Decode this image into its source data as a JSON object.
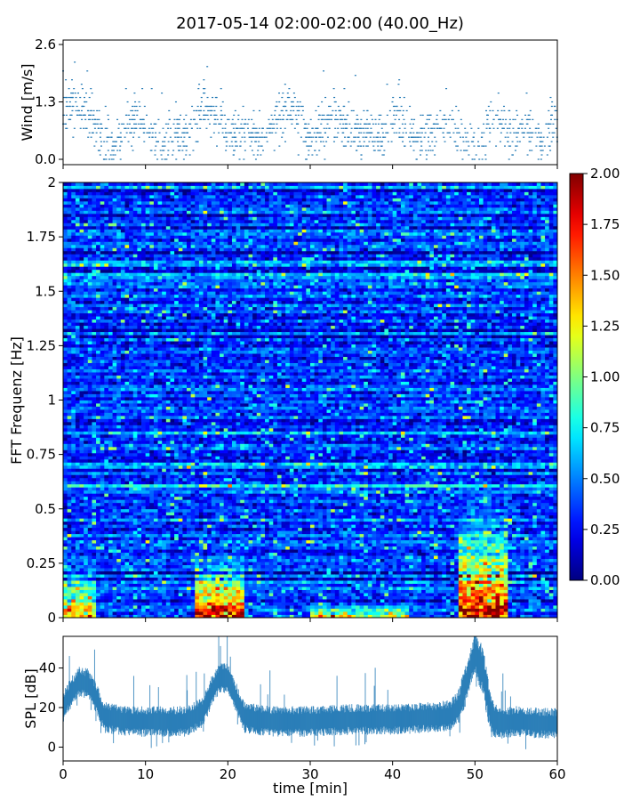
{
  "title": "2017-05-14 02:00-02:00 (40.00_Hz)",
  "colors": {
    "series": "#1f77b4",
    "colormap": [
      "#00007f",
      "#0000ff",
      "#0080ff",
      "#00ffff",
      "#80ff80",
      "#ffff00",
      "#ff8000",
      "#ff0000",
      "#7f0000"
    ]
  },
  "chart_data": [
    {
      "name": "wind",
      "type": "scatter",
      "ylabel": "Wind [m/s]",
      "ylim": [
        0,
        2.6
      ],
      "yticks": [
        0.0,
        1.3,
        2.6
      ],
      "yticklabels": [
        "0.0",
        "1.3",
        "2.6"
      ],
      "xlim": [
        0,
        60
      ],
      "xticks": [
        0,
        10,
        20,
        30,
        40,
        50,
        60
      ],
      "grid": false,
      "x_unit": "min",
      "profile": {
        "x": [
          0,
          1,
          2,
          3,
          4,
          5,
          6,
          7,
          8,
          9,
          10,
          11,
          12,
          13,
          14,
          15,
          16,
          17,
          18,
          19,
          20,
          21,
          22,
          23,
          24,
          25,
          26,
          27,
          28,
          29,
          30,
          31,
          32,
          33,
          34,
          35,
          36,
          37,
          38,
          39,
          40,
          41,
          42,
          43,
          44,
          45,
          46,
          47,
          48,
          49,
          50,
          51,
          52,
          53,
          54,
          55,
          56,
          57,
          58,
          59,
          60
        ],
        "mean": [
          1.0,
          1.3,
          1.2,
          1.0,
          0.7,
          0.4,
          0.3,
          0.5,
          0.9,
          1.1,
          0.8,
          0.5,
          0.4,
          0.5,
          0.6,
          0.5,
          0.8,
          1.2,
          1.0,
          0.8,
          0.6,
          0.5,
          0.7,
          0.6,
          0.5,
          0.6,
          0.9,
          1.1,
          1.0,
          0.7,
          0.5,
          0.6,
          0.8,
          1.0,
          0.8,
          0.6,
          0.5,
          0.6,
          0.5,
          0.6,
          1.0,
          0.9,
          0.6,
          0.4,
          0.5,
          0.6,
          0.7,
          0.8,
          0.6,
          0.5,
          0.3,
          0.5,
          0.9,
          0.8,
          0.7,
          0.6,
          0.8,
          0.6,
          0.5,
          0.7,
          0.9
        ]
      },
      "max_observed": 2.6
    },
    {
      "name": "spectrogram",
      "type": "heatmap",
      "ylabel": "FFT Frequenz [Hz]",
      "ylim": [
        0,
        2
      ],
      "yticks": [
        0,
        0.25,
        0.5,
        0.75,
        1,
        1.25,
        1.5,
        1.75,
        2
      ],
      "yticklabels": [
        "0",
        "0.25",
        "0.5",
        "0.75",
        "1",
        "1.25",
        "1.5",
        "1.75",
        "2"
      ],
      "xlim": [
        0,
        60
      ],
      "xticks": [
        0,
        10,
        20,
        30,
        40,
        50,
        60
      ],
      "colorbar": {
        "range": [
          0.0,
          2.0
        ],
        "ticks": [
          0.0,
          0.25,
          0.5,
          0.75,
          1.0,
          1.25,
          1.5,
          1.75,
          2.0
        ],
        "ticklabels": [
          "0.00",
          "0.25",
          "0.50",
          "0.75",
          "1.00",
          "1.25",
          "1.50",
          "1.75",
          "2.00"
        ],
        "colormap": "jet"
      },
      "background_level": 0.35,
      "hotspots": [
        {
          "t_start": 0,
          "t_end": 4,
          "f_max": 0.3,
          "peak": 1.5
        },
        {
          "t_start": 16,
          "t_end": 22,
          "f_max": 0.35,
          "peak": 2.0
        },
        {
          "t_start": 48,
          "t_end": 54,
          "f_max": 0.6,
          "peak": 2.0
        },
        {
          "t_start": 30,
          "t_end": 42,
          "f_max": 0.08,
          "peak": 1.3
        }
      ]
    },
    {
      "name": "spl",
      "type": "line",
      "ylabel": "SPL [dB]",
      "xlabel": "time [min]",
      "ylim": [
        -7,
        56
      ],
      "yticks": [
        0,
        20,
        40
      ],
      "yticklabels": [
        "0",
        "20",
        "40"
      ],
      "xlim": [
        0,
        60
      ],
      "xticks": [
        0,
        10,
        20,
        30,
        40,
        50,
        60
      ],
      "xticklabels": [
        "0",
        "10",
        "20",
        "30",
        "40",
        "50",
        "60"
      ],
      "x": [
        0,
        1,
        2,
        3,
        4,
        5,
        8,
        12,
        15,
        17,
        18,
        19,
        20,
        21,
        22,
        25,
        30,
        35,
        40,
        45,
        47,
        48,
        49,
        50,
        51,
        52,
        53,
        55,
        58,
        60
      ],
      "mean": [
        20,
        28,
        33,
        32,
        25,
        15,
        13,
        13,
        13,
        18,
        28,
        35,
        35,
        25,
        15,
        13,
        13,
        14,
        14,
        15,
        16,
        20,
        33,
        48,
        38,
        15,
        12,
        13,
        12,
        12
      ],
      "spread": [
        6,
        6,
        6,
        6,
        6,
        6,
        6,
        6,
        6,
        6,
        6,
        6,
        6,
        6,
        6,
        6,
        6,
        6,
        6,
        6,
        6,
        7,
        8,
        8,
        10,
        8,
        6,
        6,
        6,
        6
      ]
    }
  ]
}
